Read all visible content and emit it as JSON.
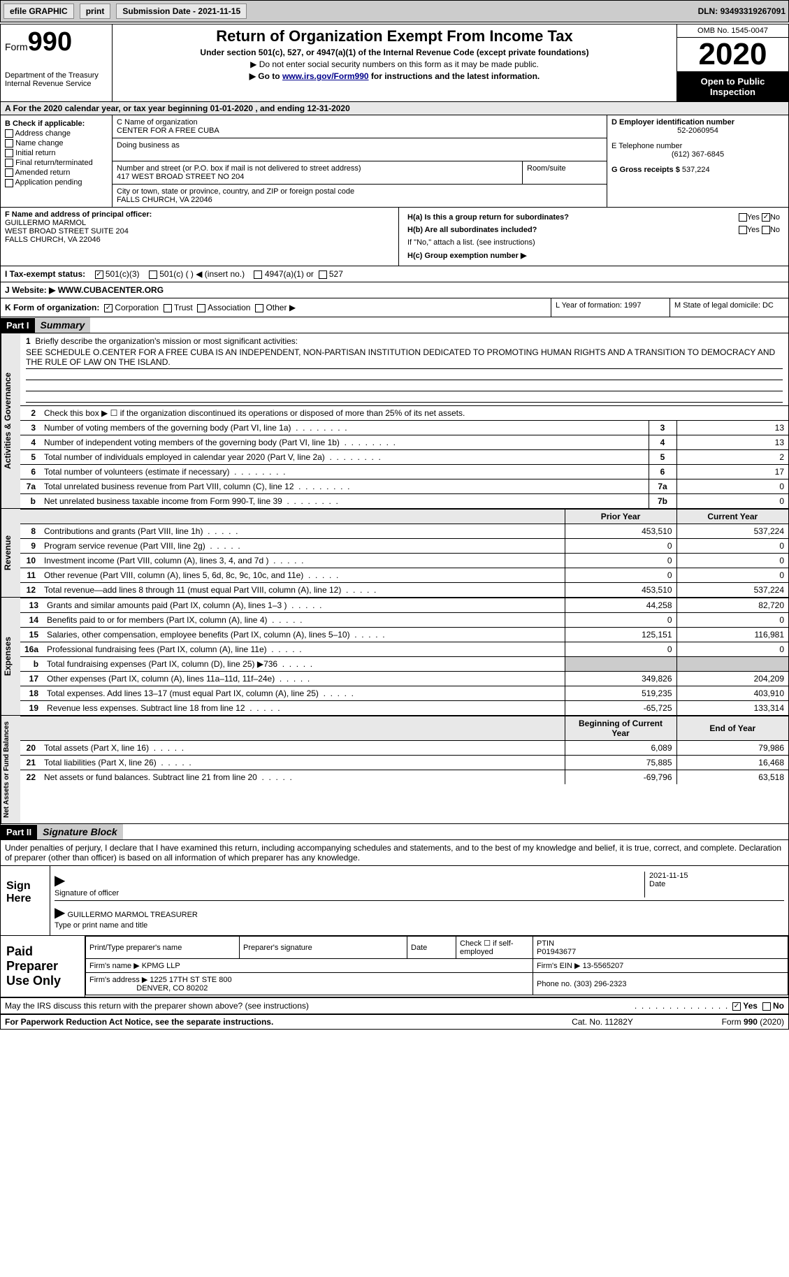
{
  "topbar": {
    "efile": "efile GRAPHIC",
    "print": "print",
    "sub_label": "Submission Date - ",
    "sub_date": "2021-11-15",
    "dln_label": "DLN: ",
    "dln": "93493319267091"
  },
  "header": {
    "form_word": "Form",
    "form_num": "990",
    "dept": "Department of the Treasury\nInternal Revenue Service",
    "title": "Return of Organization Exempt From Income Tax",
    "sub1": "Under section 501(c), 527, or 4947(a)(1) of the Internal Revenue Code (except private foundations)",
    "sub2": "▶ Do not enter social security numbers on this form as it may be made public.",
    "sub3a": "▶ Go to ",
    "sub3_link": "www.irs.gov/Form990",
    "sub3b": " for instructions and the latest information.",
    "omb": "OMB No. 1545-0047",
    "year": "2020",
    "inspect": "Open to Public Inspection"
  },
  "rowA": "A For the 2020 calendar year, or tax year beginning 01-01-2020   , and ending 12-31-2020",
  "B": {
    "label": "B Check if applicable:",
    "addr": "Address change",
    "name": "Name change",
    "init": "Initial return",
    "final": "Final return/terminated",
    "amend": "Amended return",
    "app": "Application pending"
  },
  "C": {
    "name_label": "C Name of organization",
    "name": "CENTER FOR A FREE CUBA",
    "dba_label": "Doing business as",
    "addr_label": "Number and street (or P.O. box if mail is not delivered to street address)",
    "room_label": "Room/suite",
    "addr": "417 WEST BROAD STREET NO 204",
    "city_label": "City or town, state or province, country, and ZIP or foreign postal code",
    "city": "FALLS CHURCH, VA  22046"
  },
  "D": {
    "label": "D Employer identification number",
    "ein": "52-2060954",
    "tel_label": "E Telephone number",
    "tel": "(612) 367-6845",
    "gross_label": "G Gross receipts $ ",
    "gross": "537,224"
  },
  "F": {
    "label": "F Name and address of principal officer:",
    "name": "GUILLERMO MARMOL",
    "addr1": "WEST BROAD STREET SUITE 204",
    "addr2": "FALLS CHURCH, VA  22046"
  },
  "H": {
    "a": "H(a)  Is this a group return for subordinates?",
    "b": "H(b)  Are all subordinates included?",
    "bnote": "If \"No,\" attach a list. (see instructions)",
    "c": "H(c)  Group exemption number ▶",
    "yes": "Yes",
    "no": "No"
  },
  "I": {
    "label": "I     Tax-exempt status:",
    "o1": "501(c)(3)",
    "o2": "501(c) (  ) ◀ (insert no.)",
    "o3": "4947(a)(1) or",
    "o4": "527"
  },
  "J": {
    "label": "J    Website: ▶  ",
    "val": "WWW.CUBACENTER.ORG"
  },
  "K": {
    "label": "K Form of organization:",
    "corp": "Corporation",
    "trust": "Trust",
    "assoc": "Association",
    "other": "Other ▶",
    "L": "L Year of formation: 1997",
    "M": "M State of legal domicile: DC"
  },
  "part1": {
    "hdr": "Part I",
    "title": "Summary"
  },
  "gov": {
    "side": "Activities & Governance",
    "l1": "Briefly describe the organization's mission or most significant activities:",
    "l1text": "SEE SCHEDULE O.CENTER FOR A FREE CUBA IS AN INDEPENDENT, NON-PARTISAN INSTITUTION DEDICATED TO PROMOTING HUMAN RIGHTS AND A TRANSITION TO DEMOCRACY AND THE RULE OF LAW ON THE ISLAND.",
    "l2": "Check this box ▶ ☐  if the organization discontinued its operations or disposed of more than 25% of its net assets.",
    "rows": [
      {
        "n": "3",
        "t": "Number of voting members of the governing body (Part VI, line 1a)",
        "k": "3",
        "v": "13"
      },
      {
        "n": "4",
        "t": "Number of independent voting members of the governing body (Part VI, line 1b)",
        "k": "4",
        "v": "13"
      },
      {
        "n": "5",
        "t": "Total number of individuals employed in calendar year 2020 (Part V, line 2a)",
        "k": "5",
        "v": "2"
      },
      {
        "n": "6",
        "t": "Total number of volunteers (estimate if necessary)",
        "k": "6",
        "v": "17"
      },
      {
        "n": "7a",
        "t": "Total unrelated business revenue from Part VIII, column (C), line 12",
        "k": "7a",
        "v": "0"
      },
      {
        "n": "b",
        "t": "Net unrelated business taxable income from Form 990-T, line 39",
        "k": "7b",
        "v": "0"
      }
    ]
  },
  "rev": {
    "side": "Revenue",
    "hdr_prior": "Prior Year",
    "hdr_curr": "Current Year",
    "rows": [
      {
        "n": "8",
        "t": "Contributions and grants (Part VIII, line 1h)",
        "p": "453,510",
        "c": "537,224"
      },
      {
        "n": "9",
        "t": "Program service revenue (Part VIII, line 2g)",
        "p": "0",
        "c": "0"
      },
      {
        "n": "10",
        "t": "Investment income (Part VIII, column (A), lines 3, 4, and 7d )",
        "p": "0",
        "c": "0"
      },
      {
        "n": "11",
        "t": "Other revenue (Part VIII, column (A), lines 5, 6d, 8c, 9c, 10c, and 11e)",
        "p": "0",
        "c": "0"
      },
      {
        "n": "12",
        "t": "Total revenue—add lines 8 through 11 (must equal Part VIII, column (A), line 12)",
        "p": "453,510",
        "c": "537,224"
      }
    ]
  },
  "exp": {
    "side": "Expenses",
    "rows": [
      {
        "n": "13",
        "t": "Grants and similar amounts paid (Part IX, column (A), lines 1–3 )",
        "p": "44,258",
        "c": "82,720"
      },
      {
        "n": "14",
        "t": "Benefits paid to or for members (Part IX, column (A), line 4)",
        "p": "0",
        "c": "0"
      },
      {
        "n": "15",
        "t": "Salaries, other compensation, employee benefits (Part IX, column (A), lines 5–10)",
        "p": "125,151",
        "c": "116,981"
      },
      {
        "n": "16a",
        "t": "Professional fundraising fees (Part IX, column (A), line 11e)",
        "p": "0",
        "c": "0"
      },
      {
        "n": "b",
        "t": "Total fundraising expenses (Part IX, column (D), line 25) ▶736",
        "p": "",
        "c": "",
        "shaded": true
      },
      {
        "n": "17",
        "t": "Other expenses (Part IX, column (A), lines 11a–11d, 11f–24e)",
        "p": "349,826",
        "c": "204,209"
      },
      {
        "n": "18",
        "t": "Total expenses. Add lines 13–17 (must equal Part IX, column (A), line 25)",
        "p": "519,235",
        "c": "403,910"
      },
      {
        "n": "19",
        "t": "Revenue less expenses. Subtract line 18 from line 12",
        "p": "-65,725",
        "c": "133,314"
      }
    ]
  },
  "net": {
    "side": "Net Assets or Fund Balances",
    "hdr_beg": "Beginning of Current Year",
    "hdr_end": "End of Year",
    "rows": [
      {
        "n": "20",
        "t": "Total assets (Part X, line 16)",
        "p": "6,089",
        "c": "79,986"
      },
      {
        "n": "21",
        "t": "Total liabilities (Part X, line 26)",
        "p": "75,885",
        "c": "16,468"
      },
      {
        "n": "22",
        "t": "Net assets or fund balances. Subtract line 21 from line 20",
        "p": "-69,796",
        "c": "63,518"
      }
    ]
  },
  "part2": {
    "hdr": "Part II",
    "title": "Signature Block"
  },
  "sig": {
    "intro": "Under penalties of perjury, I declare that I have examined this return, including accompanying schedules and statements, and to the best of my knowledge and belief, it is true, correct, and complete. Declaration of preparer (other than officer) is based on all information of which preparer has any knowledge.",
    "here": "Sign Here",
    "officer_sig": "Signature of officer",
    "date": "Date",
    "date_val": "2021-11-15",
    "officer_name": "GUILLERMO MARMOL TREASURER",
    "type_label": "Type or print name and title"
  },
  "prep": {
    "label": "Paid Preparer Use Only",
    "r1c1": "Print/Type preparer's name",
    "r1c2": "Preparer's signature",
    "r1c3": "Date",
    "r1c4": "Check ☐ if self-employed",
    "r1c5_label": "PTIN",
    "r1c5": "P01943677",
    "r2_label": "Firm's name    ▶ ",
    "r2": "KPMG LLP",
    "r2b_label": "Firm's EIN ▶ ",
    "r2b": "13-5565207",
    "r3_label": "Firm's address ▶ ",
    "r3": "1225 17TH ST STE 800",
    "r3b": "DENVER, CO  80202",
    "r3c_label": "Phone no. ",
    "r3c": "(303) 296-2323"
  },
  "discuss": "May the IRS discuss this return with the preparer shown above? (see instructions)",
  "footer": {
    "l": "For Paperwork Reduction Act Notice, see the separate instructions.",
    "m": "Cat. No. 11282Y",
    "r": "Form 990 (2020)"
  }
}
